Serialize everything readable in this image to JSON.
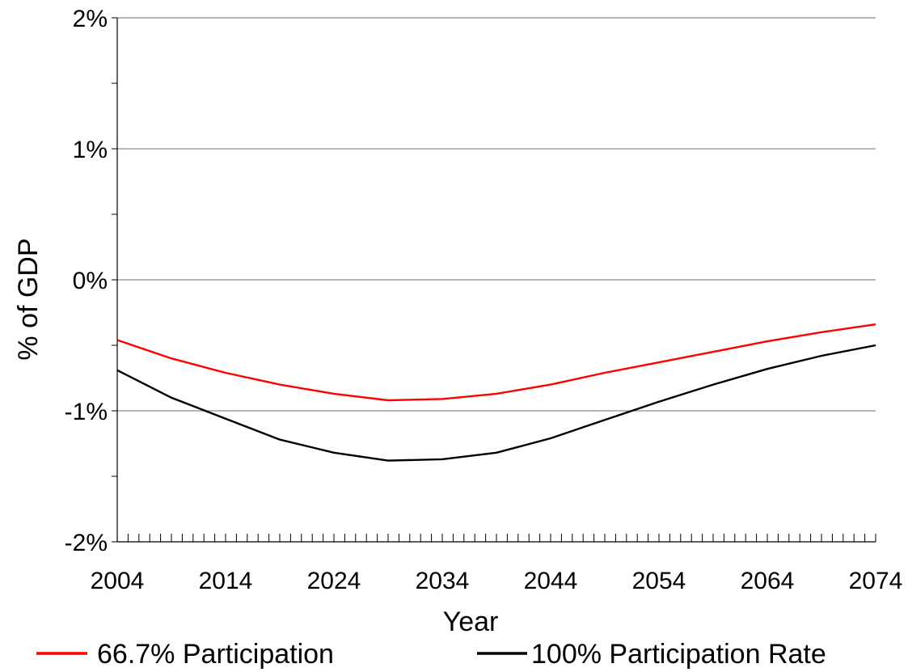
{
  "chart_data": {
    "type": "line",
    "title": "",
    "xlabel": "Year",
    "ylabel": "% of GDP",
    "xlim": [
      2004,
      2074
    ],
    "ylim": [
      -2,
      2
    ],
    "x_tick_values": [
      2004,
      2014,
      2024,
      2034,
      2044,
      2054,
      2064,
      2074
    ],
    "x_tick_labels": [
      "2004",
      "2014",
      "2024",
      "2034",
      "2044",
      "2054",
      "2064",
      "2074"
    ],
    "y_tick_values": [
      -2,
      -1,
      0,
      1,
      2
    ],
    "y_tick_labels": [
      "-2%",
      "-1%",
      "0%",
      "1%",
      "2%"
    ],
    "y_minor_step": 0.5,
    "x_minor_step": 1,
    "grid": "major-y",
    "legend_position": "bottom",
    "series": [
      {
        "name": "66.7% Participation",
        "color": "#ff0000",
        "x": [
          2004,
          2009,
          2014,
          2019,
          2024,
          2029,
          2034,
          2039,
          2044,
          2049,
          2054,
          2059,
          2064,
          2069,
          2074
        ],
        "values": [
          -0.46,
          -0.6,
          -0.71,
          -0.8,
          -0.87,
          -0.92,
          -0.91,
          -0.87,
          -0.8,
          -0.71,
          -0.63,
          -0.55,
          -0.47,
          -0.4,
          -0.34
        ]
      },
      {
        "name": "100% Participation Rate",
        "color": "#000000",
        "x": [
          2004,
          2009,
          2014,
          2019,
          2024,
          2029,
          2034,
          2039,
          2044,
          2049,
          2054,
          2059,
          2064,
          2069,
          2074
        ],
        "values": [
          -0.69,
          -0.9,
          -1.06,
          -1.22,
          -1.32,
          -1.38,
          -1.37,
          -1.32,
          -1.21,
          -1.07,
          -0.93,
          -0.8,
          -0.68,
          -0.58,
          -0.5
        ]
      }
    ]
  }
}
